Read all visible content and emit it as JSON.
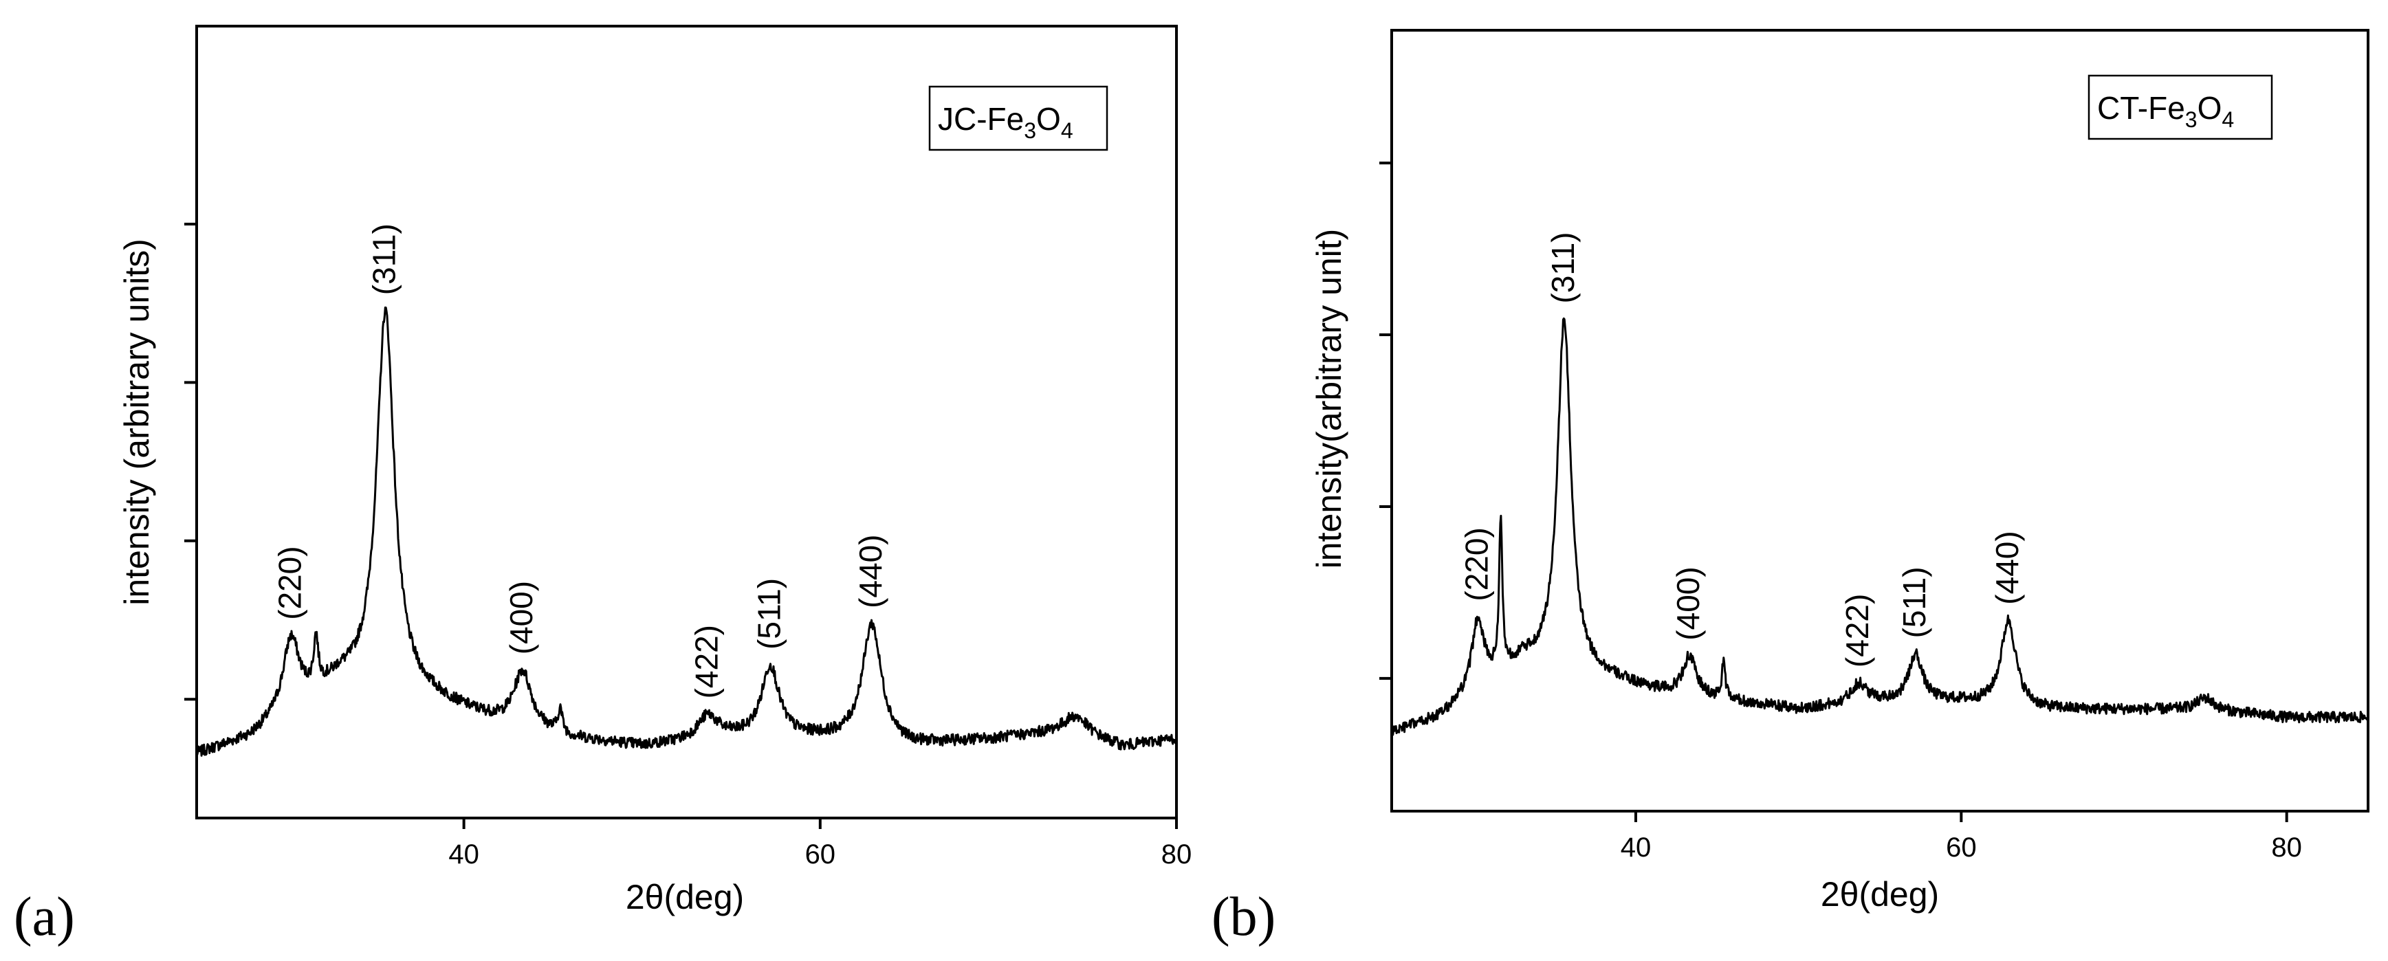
{
  "chart_data": [
    {
      "type": "line",
      "panel_label": "(a)",
      "legend": "JC-Fe3O4",
      "legend_parts": {
        "prefix": "JC-Fe",
        "sub1": "3",
        "mid": "O",
        "sub2": "4"
      },
      "legend_position": "top-right",
      "xlabel": "2θ(deg)",
      "ylabel": "intensity (arbitrary units)",
      "xlim": [
        25,
        80
      ],
      "ylim": [
        0,
        100
      ],
      "xticks": [
        40,
        60,
        80
      ],
      "xtick_labels": [
        "40",
        "60",
        "80"
      ],
      "yticks": [
        15,
        35,
        55,
        75
      ],
      "ytick_labels": [],
      "baseline": [
        [
          25,
          8
        ],
        [
          28,
          10
        ],
        [
          30,
          13
        ],
        [
          33,
          17
        ],
        [
          38,
          15
        ],
        [
          42,
          12
        ],
        [
          46,
          10
        ],
        [
          50,
          9
        ],
        [
          55,
          10
        ],
        [
          60,
          10
        ],
        [
          65,
          9
        ],
        [
          70,
          10
        ],
        [
          74,
          11
        ],
        [
          77,
          9
        ],
        [
          80,
          10
        ]
      ],
      "peaks": [
        {
          "x": 30.3,
          "height": 9,
          "width": 0.55,
          "label": "(220)"
        },
        {
          "x": 31.7,
          "height": 6,
          "width": 0.15,
          "label": ""
        },
        {
          "x": 35.6,
          "height": 48,
          "width": 0.6,
          "label": "(311)"
        },
        {
          "x": 43.3,
          "height": 7,
          "width": 0.6,
          "label": "(400)"
        },
        {
          "x": 45.4,
          "height": 3,
          "width": 0.15,
          "label": ""
        },
        {
          "x": 53.7,
          "height": 3,
          "width": 0.7,
          "label": "(422)"
        },
        {
          "x": 57.2,
          "height": 9,
          "width": 0.6,
          "label": "(511)"
        },
        {
          "x": 62.9,
          "height": 15,
          "width": 0.65,
          "label": "(440)"
        },
        {
          "x": 74.4,
          "height": 2,
          "width": 0.8,
          "label": ""
        }
      ]
    },
    {
      "type": "line",
      "panel_label": "(b)",
      "legend": "CT-Fe3O4",
      "legend_parts": {
        "prefix": "CT-Fe",
        "sub1": "3",
        "mid": "O",
        "sub2": "4"
      },
      "legend_position": "top-right",
      "xlabel": "2θ(deg)",
      "ylabel": "intensity(arbitrary unit)",
      "xlim": [
        25,
        85
      ],
      "ylim": [
        0,
        100
      ],
      "xticks": [
        40,
        60,
        80
      ],
      "xtick_labels": [
        "40",
        "60",
        "80"
      ],
      "yticks": [
        17,
        39,
        61,
        83
      ],
      "ytick_labels": [],
      "baseline": [
        [
          25,
          10
        ],
        [
          28,
          12
        ],
        [
          30,
          15
        ],
        [
          33,
          19
        ],
        [
          38,
          17
        ],
        [
          42,
          15
        ],
        [
          46,
          14
        ],
        [
          50,
          13
        ],
        [
          55,
          14
        ],
        [
          60,
          14
        ],
        [
          65,
          13
        ],
        [
          70,
          13
        ],
        [
          75,
          13
        ],
        [
          80,
          12
        ],
        [
          85,
          12
        ]
      ],
      "peaks": [
        {
          "x": 30.3,
          "height": 9,
          "width": 0.45,
          "label": "(220)"
        },
        {
          "x": 31.7,
          "height": 19,
          "width": 0.12,
          "label": ""
        },
        {
          "x": 35.6,
          "height": 45,
          "width": 0.5,
          "label": "(311)"
        },
        {
          "x": 43.3,
          "height": 5,
          "width": 0.5,
          "label": "(400)"
        },
        {
          "x": 45.4,
          "height": 5,
          "width": 0.12,
          "label": ""
        },
        {
          "x": 53.7,
          "height": 2.5,
          "width": 0.6,
          "label": "(422)"
        },
        {
          "x": 57.2,
          "height": 6,
          "width": 0.5,
          "label": "(511)"
        },
        {
          "x": 62.9,
          "height": 11,
          "width": 0.55,
          "label": "(440)"
        },
        {
          "x": 75.0,
          "height": 1.5,
          "width": 0.6,
          "label": ""
        }
      ]
    }
  ]
}
